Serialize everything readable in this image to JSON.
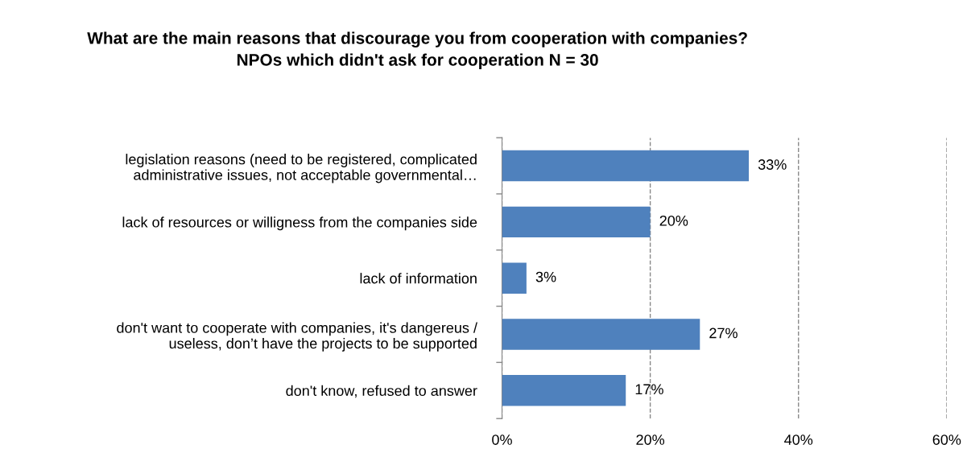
{
  "chart_data": {
    "type": "bar",
    "orientation": "horizontal",
    "title": "What are the main reasons that discourage you from cooperation with companies?\nNPOs which didn't ask for cooperation N = 30",
    "categories": [
      "legislation reasons (need to be registered, complicated\nadministrative issues, not acceptable governmental…",
      "lack of resources or willigness from the companies side",
      "lack of information",
      "don't want to cooperate with companies, it's dangereus /\nuseless, don’t have the projects to be supported",
      "don't know, refused to answer"
    ],
    "values": [
      33.3,
      20,
      3.3,
      26.7,
      16.7
    ],
    "value_labels": [
      "33%",
      "20%",
      "3%",
      "27%",
      "17%"
    ],
    "color": "#4f81bd",
    "xlim": [
      0,
      60
    ],
    "xticks": [
      {
        "value": 0,
        "label": "0%"
      },
      {
        "value": 20,
        "label": "20%"
      },
      {
        "value": 40,
        "label": "40%"
      },
      {
        "value": 60,
        "label": "60%"
      }
    ],
    "grid": "x",
    "legend": false
  }
}
